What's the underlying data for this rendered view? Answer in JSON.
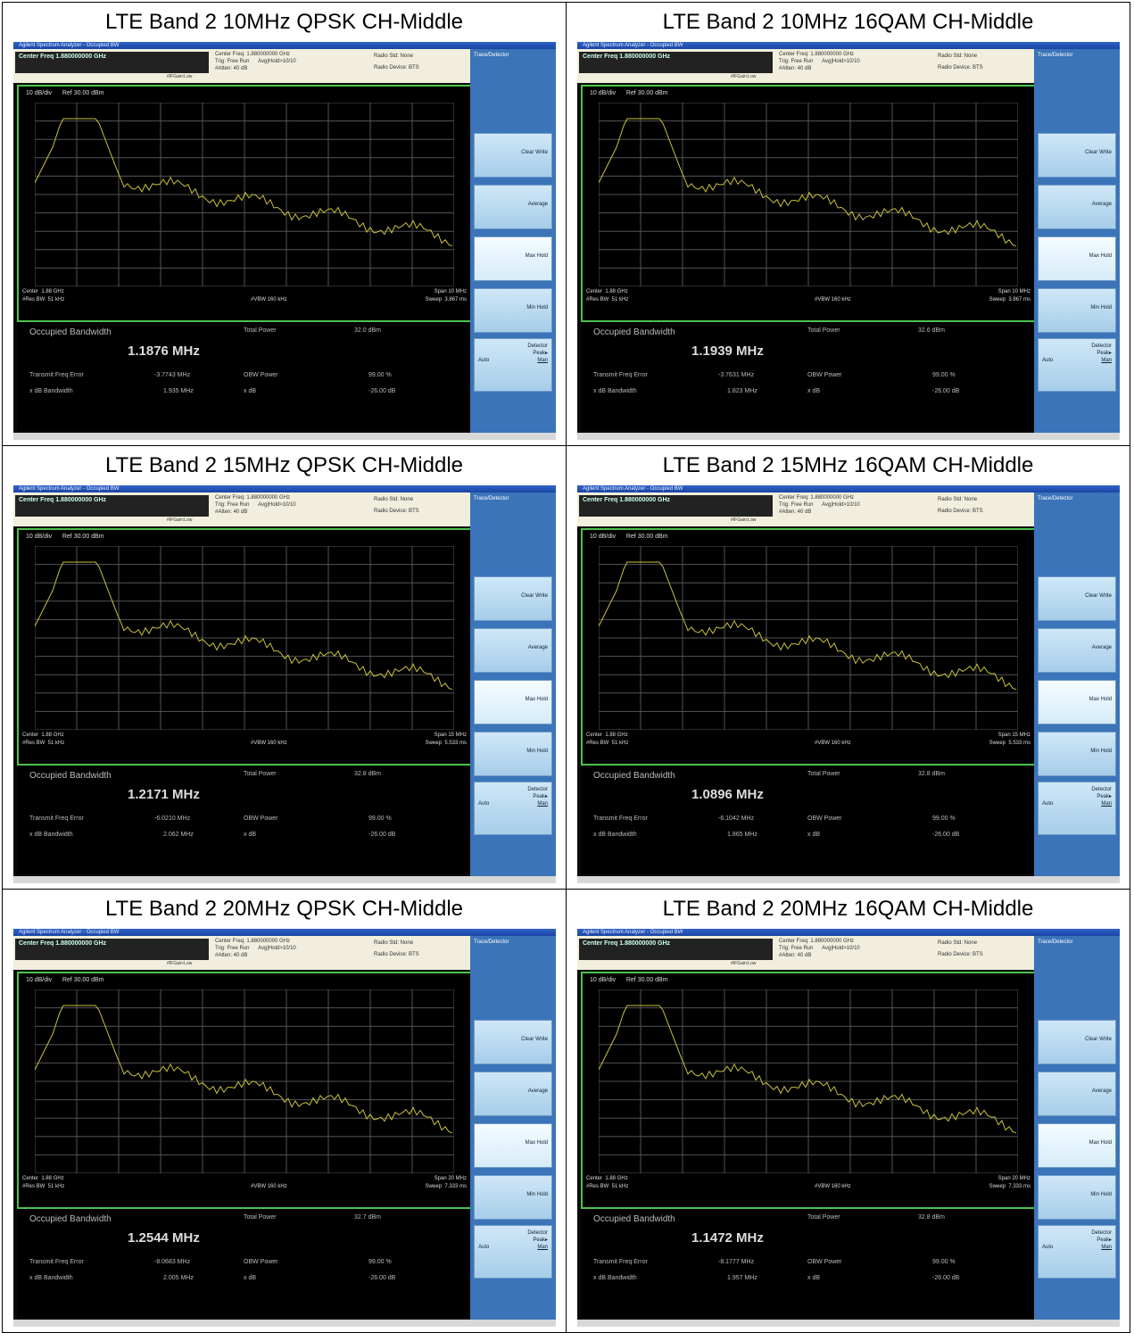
{
  "panels": [
    {
      "title": "LTE Band 2 10MHz QPSK CH-Middle",
      "obw": "1.1876 MHz",
      "total_power": "32.0 dBm",
      "freq_error": "-3.7743 MHz",
      "x_db_bw": "1.935 MHz",
      "span": "Span 10 MHz",
      "sweep": "Sweep  3.867 ms"
    },
    {
      "title": "LTE Band 2 10MHz 16QAM CH-Middle",
      "obw": "1.1939 MHz",
      "total_power": "32.6 dBm",
      "freq_error": "-3.7631 MHz",
      "x_db_bw": "1.823 MHz",
      "span": "Span 10 MHz",
      "sweep": "Sweep  3.867 ms"
    },
    {
      "title": "LTE Band 2 15MHz QPSK CH-Middle",
      "obw": "1.2171 MHz",
      "total_power": "32.8 dBm",
      "freq_error": "-6.0210 MHz",
      "x_db_bw": "2.062 MHz",
      "span": "Span 15 MHz",
      "sweep": "Sweep  5.533 ms"
    },
    {
      "title": "LTE Band 2 15MHz 16QAM CH-Middle",
      "obw": "1.0896 MHz",
      "total_power": "32.8 dBm",
      "freq_error": "-6.1042 MHz",
      "x_db_bw": "1.865 MHz",
      "span": "Span 15 MHz",
      "sweep": "Sweep  5.533 ms"
    },
    {
      "title": "LTE Band 2 20MHz QPSK CH-Middle",
      "obw": "1.2544 MHz",
      "total_power": "32.7 dBm",
      "freq_error": "-8.0683 MHz",
      "x_db_bw": "2.005 MHz",
      "span": "Span 20 MHz",
      "sweep": "Sweep  7.333 ms"
    },
    {
      "title": "LTE Band 2 20MHz 16QAM CH-Middle",
      "obw": "1.1472 MHz",
      "total_power": "32.8 dBm",
      "freq_error": "-8.1777 MHz",
      "x_db_bw": "1.957 MHz",
      "span": "Span 20 MHz",
      "sweep": "Sweep  7.333 ms"
    }
  ],
  "common": {
    "window_title": "Agilent Spectrum Analyzer - Occupied BW",
    "center_freq": "Center Freq 1.880000000 GHz",
    "hdr_mid": "Center Freq: 1.880000000 GHz\nTrig: Free Run      Avg|Hold>10/10\n#Atten: 40 dB",
    "hdr_right": "Radio Std: None\nRadio Device: BTS",
    "hdr_small": "#IFGain:Low",
    "ref_label": "10 dB/div      Ref 30.00 dBm",
    "center": "Center  1.88 GHz",
    "res_bw": "#Res BW  51 kHz",
    "vbw": "#VBW  160 kHz",
    "obw_label": "Occupied Bandwidth",
    "total_power_label": "Total Power",
    "freq_error_label": "Transmit Freq Error",
    "x_db_bw_label": "x dB Bandwidth",
    "obw_power_label": "OBW Power",
    "obw_power_value": "99.00 %",
    "x_db_label": "x dB",
    "x_db_value": "-26.00 dB",
    "sk_top": "Trace/Detector",
    "sk_clear": "Clear Write",
    "sk_average": "Average",
    "sk_maxhold": "Max Hold",
    "sk_minhold": "Min Hold",
    "sk_detector": "Detector",
    "sk_peak": "Peak▸",
    "sk_auto": "Auto",
    "sk_man": "Man"
  }
}
